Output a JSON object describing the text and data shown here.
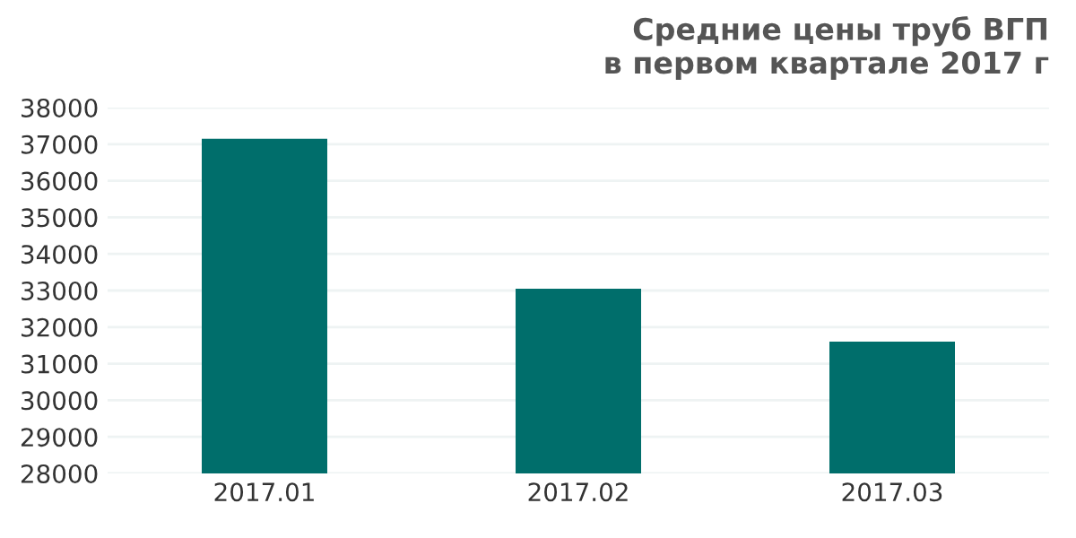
{
  "chart_data": {
    "type": "bar",
    "title": "Средние цены труб ВГП\nв первом квартале 2017 г",
    "categories": [
      "2017.01",
      "2017.02",
      "2017.03"
    ],
    "values": [
      37150,
      33050,
      31600
    ],
    "color": "#006e6b",
    "ylim": [
      28000,
      38000
    ],
    "yticks": [
      28000,
      29000,
      30000,
      31000,
      32000,
      33000,
      34000,
      35000,
      36000,
      37000,
      38000
    ],
    "grid": "y"
  }
}
